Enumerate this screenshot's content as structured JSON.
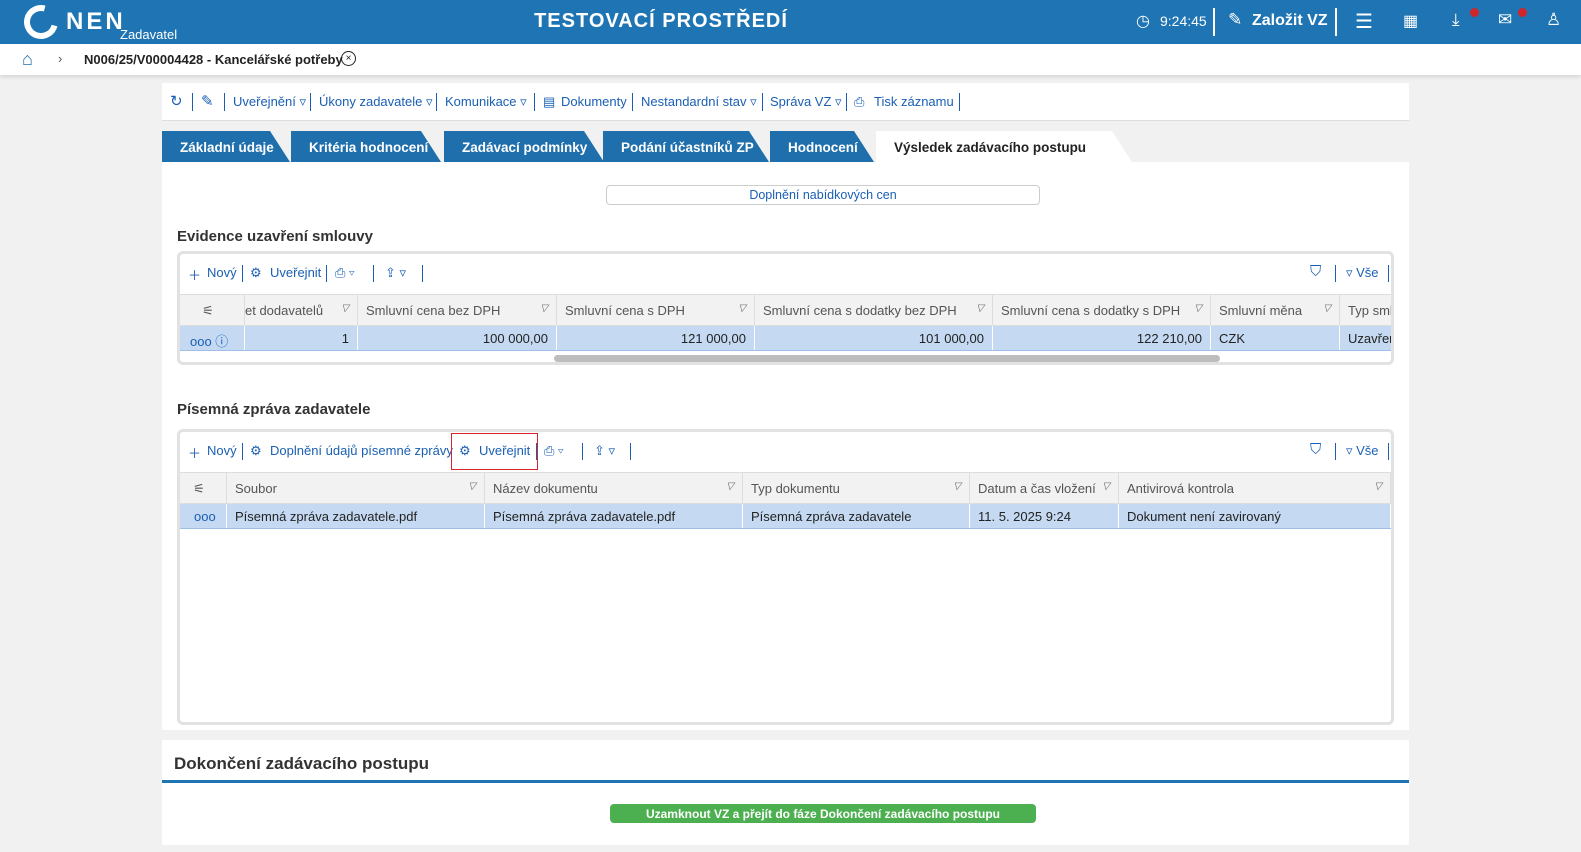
{
  "header": {
    "brand": "NEN",
    "role": "Zadavatel",
    "environment": "TESTOVACÍ PROSTŘEDÍ",
    "clock": "9:24:45",
    "create_label": "Založit VZ",
    "color": "#1f75b3"
  },
  "breadcrumb": {
    "title": "N006/25/V00004428 - Kancelářské potřeby"
  },
  "toolbar": {
    "items": [
      "Uveřejnění ▿",
      "Úkony zadavatele ▿",
      "Komunikace ▿",
      "Dokumenty",
      "Nestandardní stav ▿",
      "Správa VZ ▿",
      "Tisk záznamu"
    ]
  },
  "tabs": [
    "Základní údaje",
    "Kritéria hodnocení",
    "Zadávací podmínky",
    "Podání účastníků ZP",
    "Hodnocení",
    "Výsledek zadávacího postupu"
  ],
  "main": {
    "price_button": "Doplnění nabídkových cen",
    "contracts": {
      "title": "Evidence uzavření smlouvy",
      "new": "Nový",
      "publish": "Uveřejnit",
      "all": "Vše",
      "columns": [
        "et dodavatelů",
        "Smluvní cena bez DPH",
        "Smluvní cena s DPH",
        "Smluvní cena s dodatky bez DPH",
        "Smluvní cena s dodatky s DPH",
        "Smluvní měna",
        "Typ sml"
      ],
      "rows": [
        [
          "1",
          "100 000,00",
          "121 000,00",
          "101 000,00",
          "122 210,00",
          "CZK",
          "Uzavřen"
        ]
      ]
    },
    "report": {
      "title": "Písemná zpráva zadavatele",
      "new": "Nový",
      "supplement": "Doplnění údajů písemné zprávy",
      "publish": "Uveřejnit",
      "all": "Vše",
      "columns": [
        "Soubor",
        "Název dokumentu",
        "Typ dokumentu",
        "Datum a čas vložení",
        "Antivirová kontrola"
      ],
      "rows": [
        [
          "Písemná zpráva zadavatele.pdf",
          "Písemná zpráva zadavatele.pdf",
          "Písemná zpráva zadavatele",
          "11. 5. 2025 9:24",
          "Dokument není zavirovaný"
        ]
      ]
    }
  },
  "completion": {
    "title": "Dokončení zadávacího postupu",
    "button": "Uzamknout VZ a přejít do fáze Dokončení zadávacího postupu",
    "button_color": "#4caf50"
  }
}
